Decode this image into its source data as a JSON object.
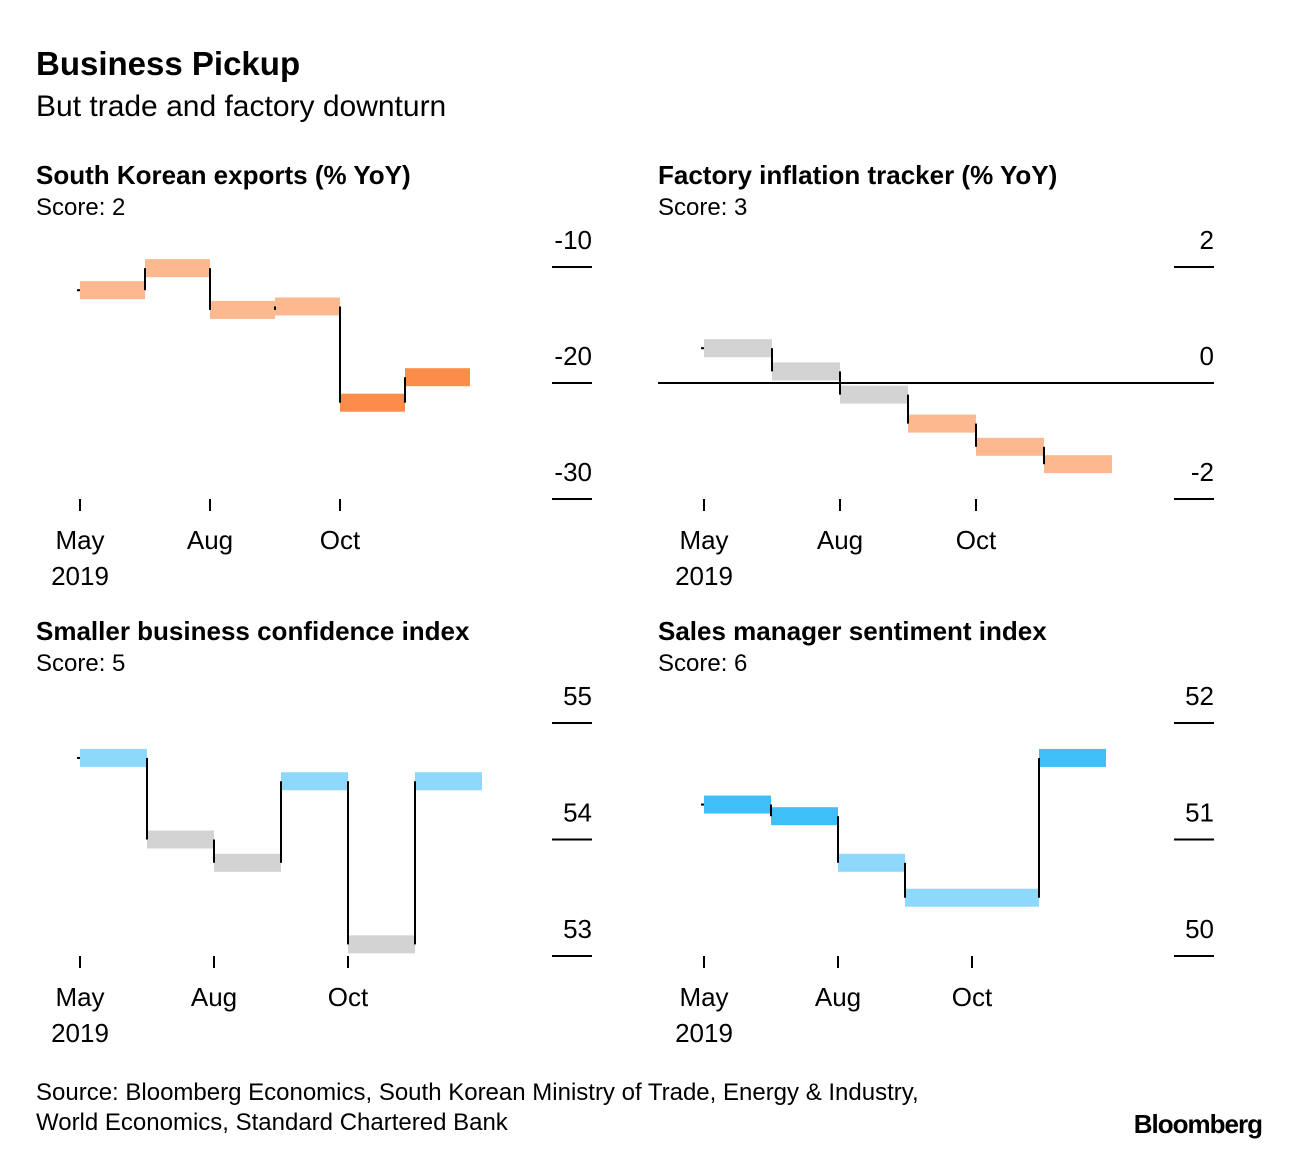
{
  "title": "Business Pickup",
  "subtitle": "But trade and factory downturn",
  "chart_data": [
    {
      "type": "step",
      "title": "South Korean exports (% YoY)",
      "subtitle": "Score: 2",
      "categories": [
        "May 2019",
        null,
        "Aug",
        null,
        "Oct",
        null
      ],
      "values": [
        -12.0,
        -10.1,
        -13.7,
        -13.4,
        -21.7,
        -19.5
      ],
      "colors": [
        "#fcb88f",
        "#fcb88f",
        "#fcb88f",
        "#fcb88f",
        "#fb8c4a",
        "#fb8c4a"
      ],
      "ylim": [
        -30,
        -10
      ],
      "yticks": [
        -30,
        -20,
        -10
      ]
    },
    {
      "type": "step",
      "title": "Factory inflation tracker (% YoY)",
      "subtitle": "Score: 3",
      "categories": [
        "May 2019",
        null,
        "Aug",
        null,
        "Oct",
        null
      ],
      "values": [
        0.6,
        0.2,
        -0.2,
        -0.7,
        -1.1,
        -1.4
      ],
      "colors": [
        "#d3d3d3",
        "#d3d3d3",
        "#d3d3d3",
        "#fcb88f",
        "#fcb88f",
        "#fcb88f"
      ],
      "ylim": [
        -2,
        2
      ],
      "yticks": [
        -2,
        0,
        2
      ],
      "zero_line": true
    },
    {
      "type": "step",
      "title": "Smaller business confidence index",
      "subtitle": "Score: 5",
      "categories": [
        "May 2019",
        null,
        "Aug",
        null,
        "Oct",
        null
      ],
      "values": [
        54.7,
        54.0,
        53.8,
        54.5,
        53.1,
        54.5
      ],
      "colors": [
        "#8ed8fb",
        "#d3d3d3",
        "#d3d3d3",
        "#8ed8fb",
        "#d3d3d3",
        "#8ed8fb"
      ],
      "ylim": [
        53,
        55
      ],
      "yticks": [
        53,
        54,
        55
      ]
    },
    {
      "type": "step",
      "title": "Sales manager sentiment index",
      "subtitle": "Score: 6",
      "categories": [
        "May 2019",
        null,
        "Aug",
        null,
        "Oct",
        null
      ],
      "values": [
        51.3,
        51.2,
        50.8,
        50.5,
        50.5,
        51.7
      ],
      "colors": [
        "#3fbff7",
        "#3fbff7",
        "#8ed8fb",
        "#8ed8fb",
        "#8ed8fb",
        "#3fbff7"
      ],
      "ylim": [
        50,
        52
      ],
      "yticks": [
        50,
        51,
        52
      ]
    }
  ],
  "source": [
    "Source: Bloomberg Economics, South Korean Ministry of Trade, Energy & Industry,",
    "World Economics, Standard Chartered Bank"
  ],
  "logo": "Bloomberg"
}
